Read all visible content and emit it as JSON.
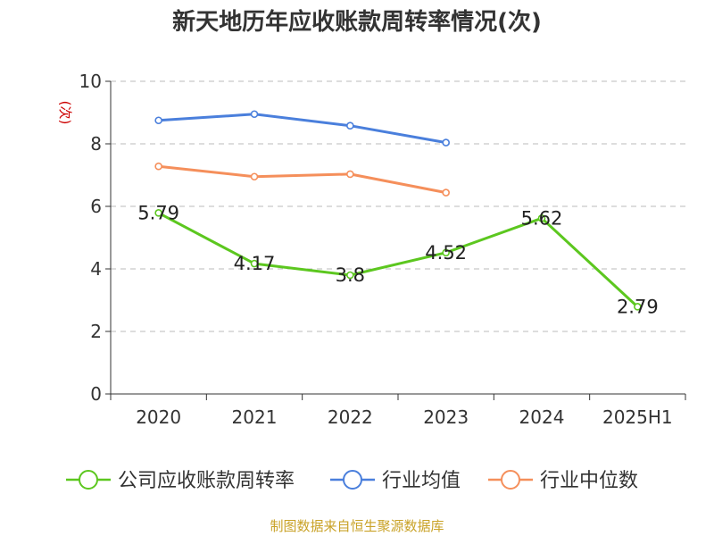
{
  "chart_data": {
    "type": "line",
    "title": "新天地历年应收账款周转率情况(次)",
    "ylabel": "(次)",
    "xlabel": "",
    "ylim": [
      0,
      10
    ],
    "yticks": [
      0,
      2,
      4,
      6,
      8,
      10
    ],
    "categories": [
      "2020",
      "2021",
      "2022",
      "2023",
      "2024",
      "2025H1"
    ],
    "grid": true,
    "legend_position": "bottom",
    "series": [
      {
        "name": "公司应收账款周转率",
        "color": "#5cc71f",
        "values": [
          5.79,
          4.17,
          3.8,
          4.52,
          5.62,
          2.79
        ],
        "labels": [
          "5.79",
          "4.17",
          "3.8",
          "4.52",
          "5.62",
          "2.79"
        ]
      },
      {
        "name": "行业均值",
        "color": "#4a7fdc",
        "values": [
          8.75,
          8.95,
          8.58,
          8.04,
          null,
          null
        ]
      },
      {
        "name": "行业中位数",
        "color": "#f58f5b",
        "values": [
          7.28,
          6.95,
          7.03,
          6.44,
          null,
          null
        ]
      }
    ]
  },
  "source": "制图数据来自恒生聚源数据库"
}
